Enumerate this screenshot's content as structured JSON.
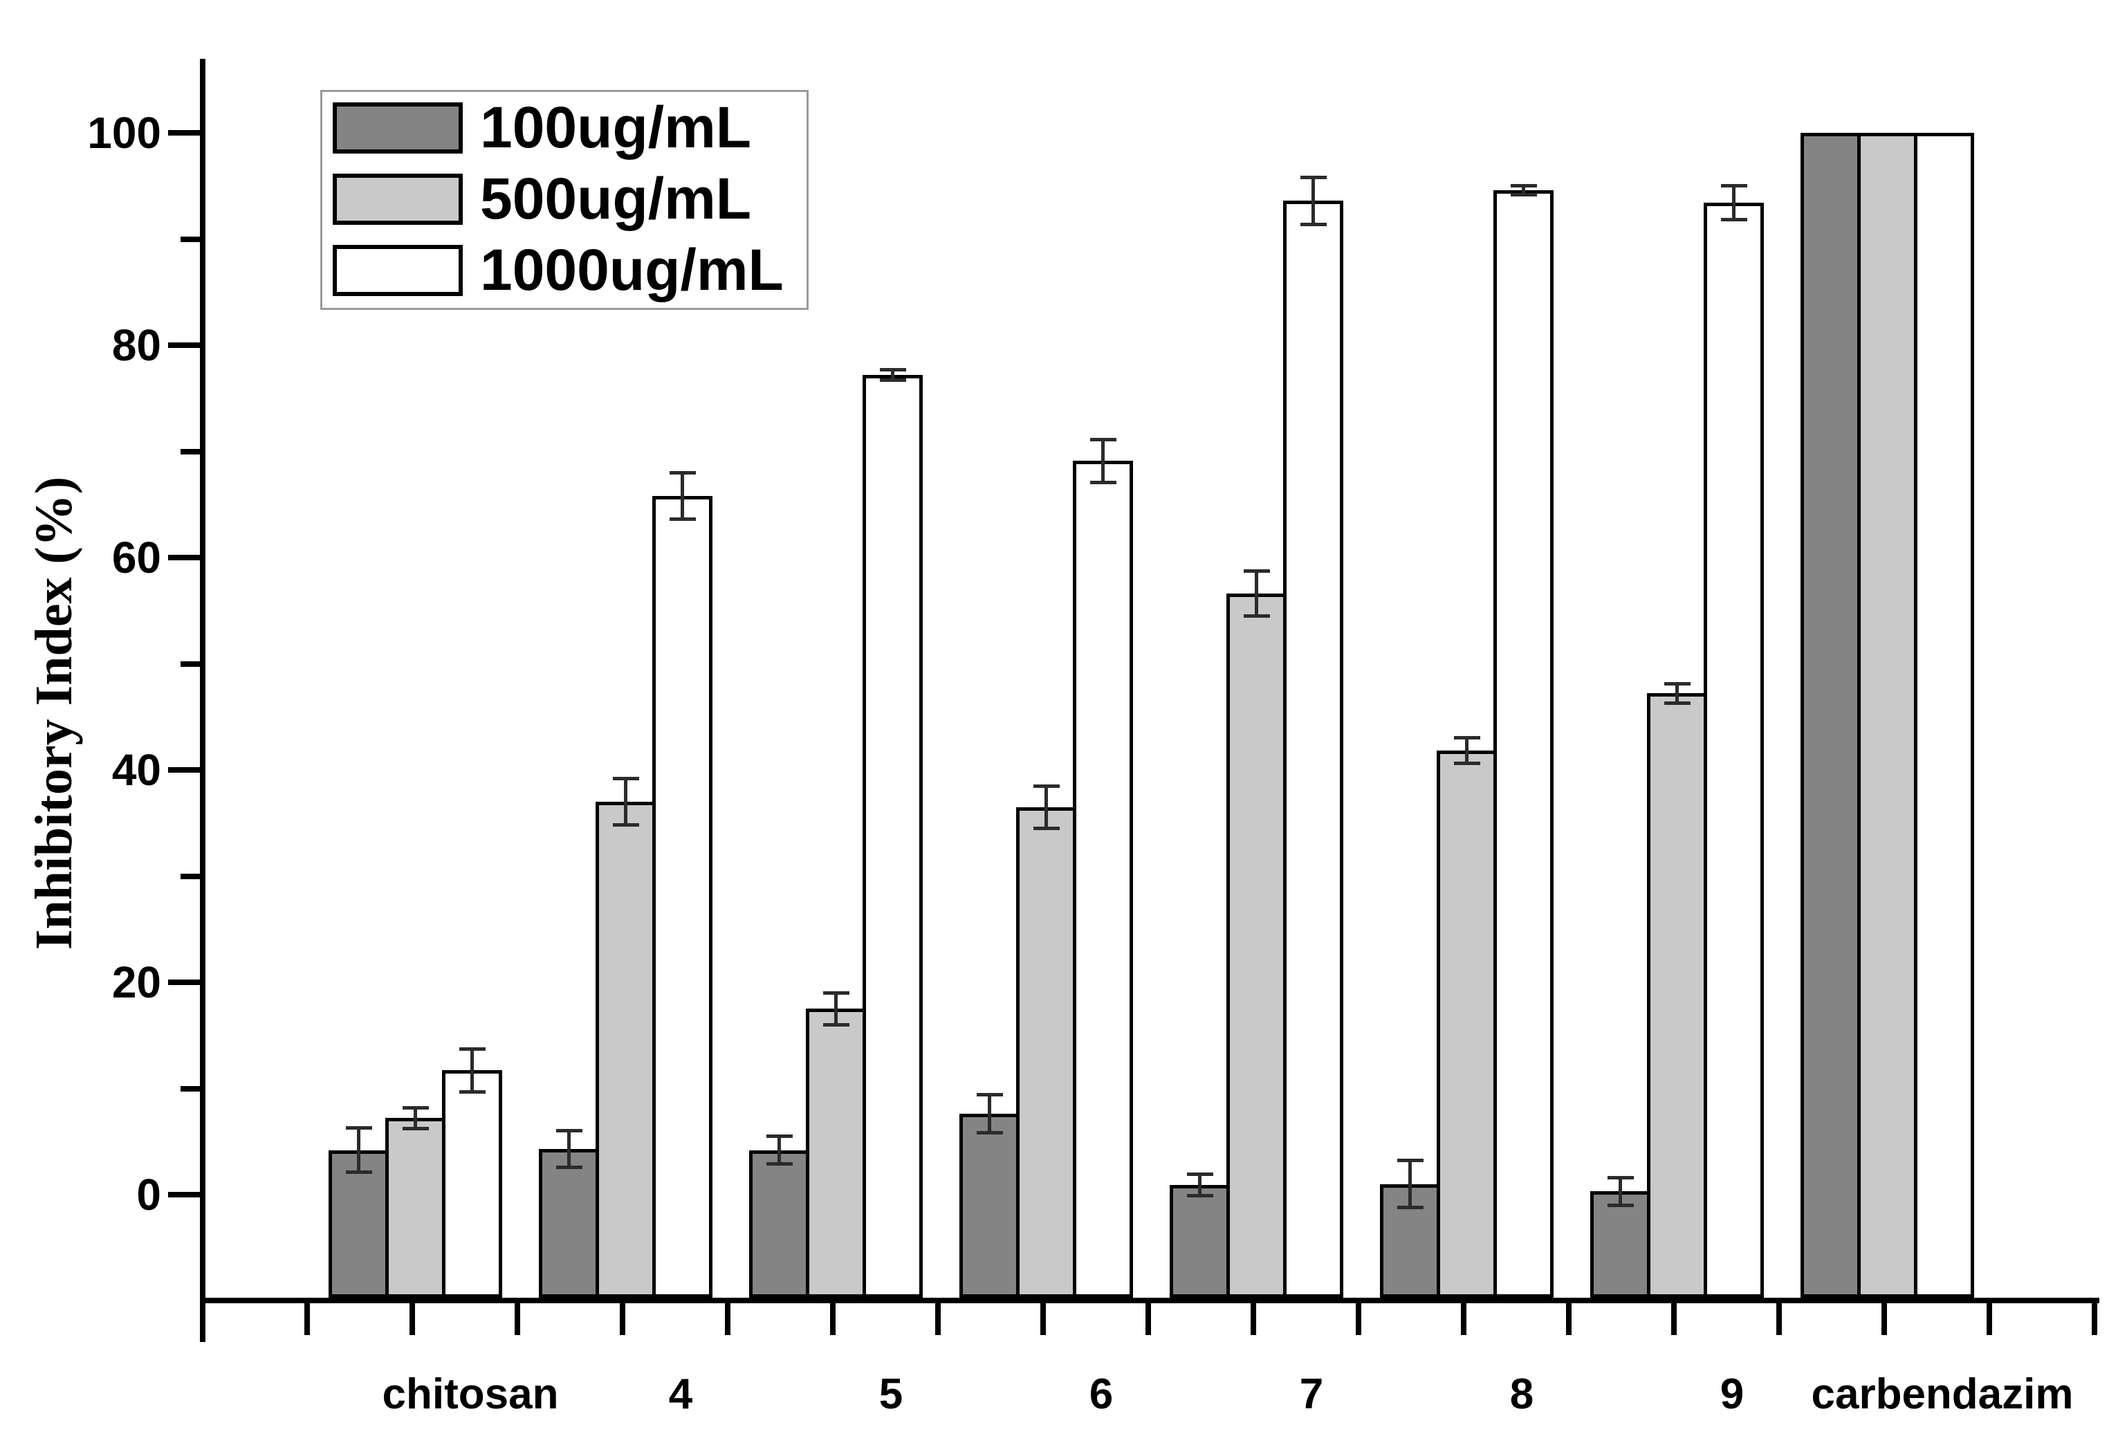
{
  "figure": {
    "background": "#ffffff",
    "axis_color": "#000000",
    "error_bar_color": "#2b2b2b",
    "bar_border_color": "#000000"
  },
  "chart_data": {
    "type": "bar",
    "title": "",
    "xlabel": "",
    "ylabel": "Inhibitory Index (%)",
    "categories": [
      "chitosan",
      "4",
      "5",
      "6",
      "7",
      "8",
      "9",
      "carbendazim"
    ],
    "series": [
      {
        "name": "100ug/mL",
        "color": "#848484",
        "values": [
          4.2,
          4.3,
          4.2,
          7.6,
          0.9,
          1.0,
          0.3,
          100
        ],
        "errors": [
          2.1,
          1.7,
          1.3,
          1.8,
          1.0,
          2.2,
          1.3,
          0
        ]
      },
      {
        "name": "500ug/mL",
        "color": "#c9c9c9",
        "values": [
          7.2,
          37.0,
          17.5,
          36.5,
          56.6,
          41.8,
          47.2,
          100
        ],
        "errors": [
          1.0,
          2.2,
          1.5,
          2.0,
          2.1,
          1.2,
          0.9,
          0
        ]
      },
      {
        "name": "1000ug/mL",
        "color": "#ffffff",
        "values": [
          11.7,
          65.8,
          77.2,
          69.1,
          93.6,
          94.6,
          93.4,
          100
        ],
        "errors": [
          2.0,
          2.2,
          0.5,
          2.0,
          2.2,
          0.4,
          1.6,
          0
        ]
      }
    ],
    "ylim": [
      -10,
      113
    ],
    "yticks_major": [
      0,
      20,
      40,
      60,
      80,
      100
    ],
    "yticks_minor": [
      10,
      30,
      50,
      70,
      90
    ],
    "grid": false,
    "legend_position": "upper-left"
  }
}
